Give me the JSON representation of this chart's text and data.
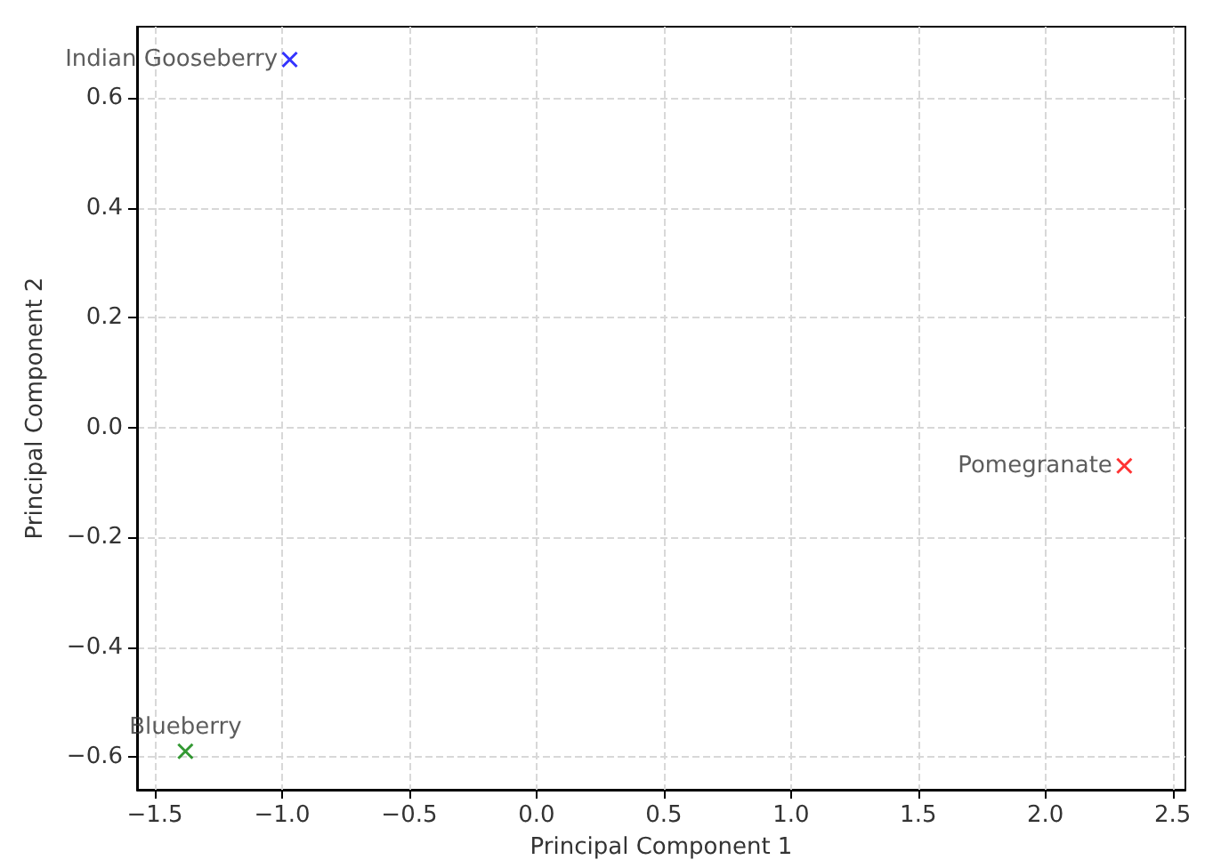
{
  "chart_data": {
    "type": "scatter",
    "xlabel": "Principal Component 1",
    "ylabel": "Principal Component 2",
    "marker": "cross",
    "grid": true,
    "legend": false,
    "series": [
      {
        "name": "Indian Gooseberry",
        "color": "#0000ff",
        "x": [
          -0.97
        ],
        "values": [
          0.67
        ]
      },
      {
        "name": "Pomegranate",
        "color": "#ff0000",
        "x": [
          2.31
        ],
        "values": [
          -0.07
        ]
      },
      {
        "name": "Blueberry",
        "color": "#008000",
        "x": [
          -1.38
        ],
        "values": [
          -0.59
        ]
      }
    ],
    "xlim": [
      -1.57,
      2.55
    ],
    "ylim": [
      -0.66,
      0.73
    ],
    "xticks": [
      {
        "value": -1.5,
        "label": "−1.5"
      },
      {
        "value": -1.0,
        "label": "−1.0"
      },
      {
        "value": -0.5,
        "label": "−0.5"
      },
      {
        "value": 0,
        "label": "0.0"
      },
      {
        "value": 0.5,
        "label": "0.5"
      },
      {
        "value": 1.0,
        "label": "1.0"
      },
      {
        "value": 1.5,
        "label": "1.5"
      },
      {
        "value": 2.0,
        "label": "2.0"
      },
      {
        "value": 2.5,
        "label": "2.5"
      }
    ],
    "yticks": [
      {
        "value": -0.6,
        "label": "−0.6"
      },
      {
        "value": -0.4,
        "label": "−0.4"
      },
      {
        "value": -0.2,
        "label": "−0.2"
      },
      {
        "value": 0,
        "label": "0.0"
      },
      {
        "value": 0.2,
        "label": "0.2"
      },
      {
        "value": 0.4,
        "label": "0.4"
      },
      {
        "value": 0.6,
        "label": "0.6"
      }
    ]
  }
}
